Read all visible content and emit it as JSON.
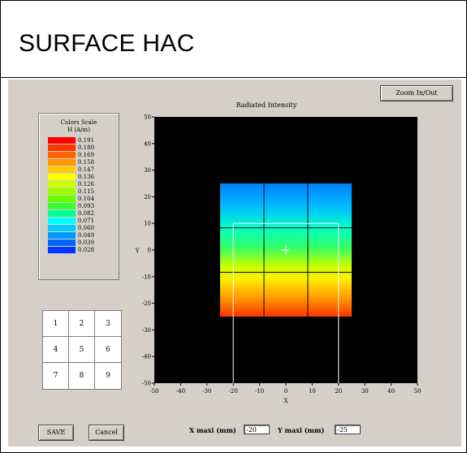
{
  "title": "SURFACE HAC",
  "toolbar": {
    "zoom_label": "Zoom In/Out"
  },
  "color_scale": {
    "title": "Colors Scale",
    "unit": "H (A/m)",
    "entries": [
      {
        "label": "0.191",
        "color": "#ff0000"
      },
      {
        "label": "0.180",
        "color": "#ff3300"
      },
      {
        "label": "0.169",
        "color": "#ff6600"
      },
      {
        "label": "0.158",
        "color": "#ff9900"
      },
      {
        "label": "0.147",
        "color": "#ffcc00"
      },
      {
        "label": "0.136",
        "color": "#ffff00"
      },
      {
        "label": "0.126",
        "color": "#ccff00"
      },
      {
        "label": "0.115",
        "color": "#99ff00"
      },
      {
        "label": "0.104",
        "color": "#66ff00"
      },
      {
        "label": "0.093",
        "color": "#33ff33"
      },
      {
        "label": "0.082",
        "color": "#00ff99"
      },
      {
        "label": "0.071",
        "color": "#00ffff"
      },
      {
        "label": "0.060",
        "color": "#00ccff"
      },
      {
        "label": "0.049",
        "color": "#0099ff"
      },
      {
        "label": "0.039",
        "color": "#0066ff"
      },
      {
        "label": "0.028",
        "color": "#0033ff"
      }
    ]
  },
  "numpad": {
    "keys": [
      "1",
      "2",
      "3",
      "4",
      "5",
      "6",
      "7",
      "8",
      "9"
    ]
  },
  "chart_data": {
    "type": "heatmap",
    "title": "Radiated Intensity",
    "xlabel": "X",
    "ylabel": "Y",
    "xlim": [
      -50,
      50
    ],
    "ylim": [
      -50,
      50
    ],
    "x_ticks": [
      -50,
      -40,
      -30,
      -20,
      -10,
      0,
      10,
      20,
      30,
      40,
      50
    ],
    "y_ticks": [
      50,
      40,
      30,
      20,
      10,
      0,
      -10,
      -20,
      -30,
      -40,
      -50
    ],
    "surface_x": [
      -25,
      25
    ],
    "surface_y": [
      -25,
      25
    ],
    "grid_x": [
      -8.33,
      8.33
    ],
    "grid_y": [
      -8.33,
      8.33
    ],
    "probe_rect": {
      "x": [
        -20,
        20
      ],
      "y": [
        -50,
        10
      ]
    },
    "crosshair": [
      0,
      0
    ],
    "background": "#000000"
  },
  "footer": {
    "save_label": "SAVE",
    "cancel_label": "Cancel",
    "xmaxi_label": "X maxi (mm)",
    "xmaxi_value": "-20",
    "ymaxi_label": "Y maxi (mm)",
    "ymaxi_value": "-25"
  }
}
